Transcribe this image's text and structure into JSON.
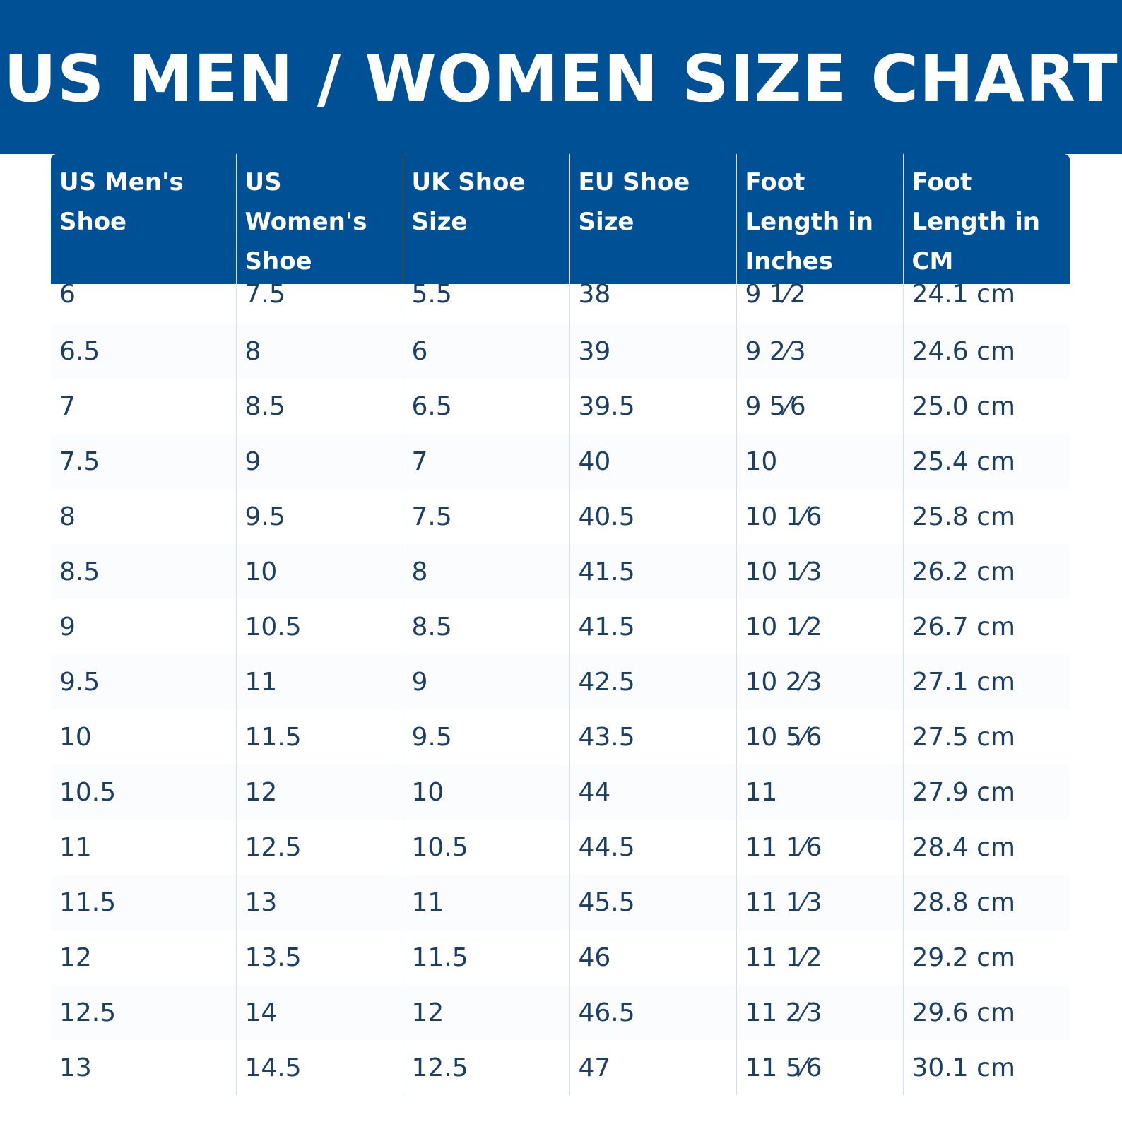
{
  "page": {
    "title": "US MEN / WOMEN SIZE CHART"
  },
  "colors": {
    "brand_blue": "#005096",
    "cell_text": "#1c3f63",
    "divider": "#d6dee6"
  },
  "table": {
    "headers": [
      [
        "US Men's",
        "Shoe"
      ],
      [
        "US",
        "Women's",
        "Shoe"
      ],
      [
        "UK Shoe",
        "Size"
      ],
      [
        "EU Shoe",
        "Size"
      ],
      [
        "Foot",
        "Length in",
        "Inches"
      ],
      [
        "Foot",
        "Length in",
        "CM"
      ]
    ],
    "rows": [
      [
        "6",
        "7.5",
        "5.5",
        "38",
        "9 1⁄2",
        "24.1 cm"
      ],
      [
        "6.5",
        "8",
        "6",
        "39",
        "9 2⁄3",
        "24.6 cm"
      ],
      [
        "7",
        "8.5",
        "6.5",
        "39.5",
        "9 5⁄6",
        "25.0 cm"
      ],
      [
        "7.5",
        "9",
        "7",
        "40",
        "10",
        "25.4 cm"
      ],
      [
        "8",
        "9.5",
        "7.5",
        "40.5",
        "10 1⁄6",
        "25.8 cm"
      ],
      [
        "8.5",
        "10",
        "8",
        "41.5",
        "10 1⁄3",
        "26.2 cm"
      ],
      [
        "9",
        "10.5",
        "8.5",
        "41.5",
        "10 1⁄2",
        "26.7 cm"
      ],
      [
        "9.5",
        "11",
        "9",
        "42.5",
        "10 2⁄3",
        "27.1 cm"
      ],
      [
        "10",
        "11.5",
        "9.5",
        "43.5",
        "10 5⁄6",
        "27.5 cm"
      ],
      [
        "10.5",
        "12",
        "10",
        "44",
        "11",
        "27.9 cm"
      ],
      [
        "11",
        "12.5",
        "10.5",
        "44.5",
        "11 1⁄6",
        "28.4 cm"
      ],
      [
        "11.5",
        "13",
        "11",
        "45.5",
        "11 1⁄3",
        "28.8 cm"
      ],
      [
        "12",
        "13.5",
        "11.5",
        "46",
        "11 1⁄2",
        "29.2 cm"
      ],
      [
        "12.5",
        "14",
        "12",
        "46.5",
        "11 2⁄3",
        "29.6 cm"
      ],
      [
        "13",
        "14.5",
        "12.5",
        "47",
        "11 5⁄6",
        "30.1 cm"
      ]
    ]
  }
}
